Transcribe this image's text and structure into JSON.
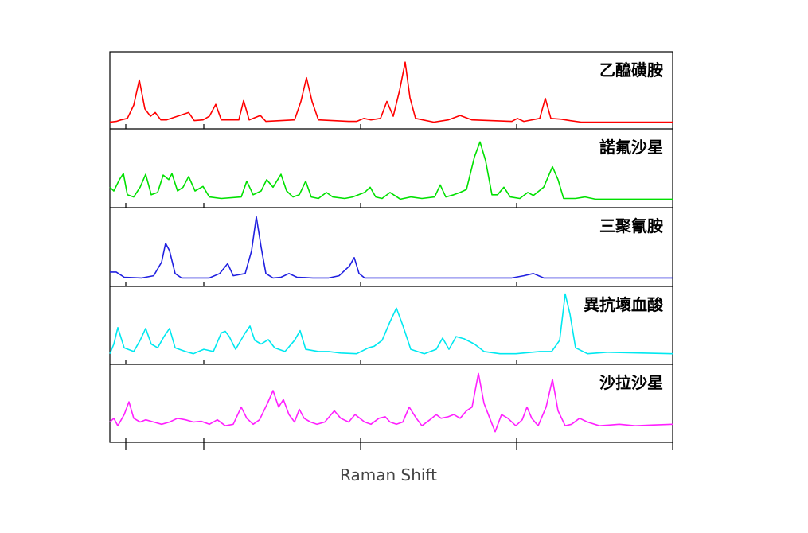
{
  "chart_data": [
    {
      "type": "line",
      "title": "乙醯磺胺",
      "color": "#ff0000",
      "xlim": [
        0,
        707
      ],
      "ylim": [
        0,
        100
      ],
      "x": [
        0,
        8,
        14,
        22,
        30,
        37,
        44,
        51,
        57,
        64,
        71,
        99,
        106,
        117,
        125,
        133,
        140,
        162,
        168,
        175,
        189,
        196,
        232,
        240,
        247,
        254,
        262,
        300,
        310,
        319,
        328,
        340,
        348,
        356,
        364,
        371,
        377,
        384,
        407,
        425,
        440,
        455,
        505,
        512,
        520,
        540,
        547,
        554,
        567,
        578,
        592,
        707
      ],
      "values": [
        7,
        8,
        10,
        12,
        30,
        64,
        25,
        15,
        20,
        10,
        10,
        20,
        9,
        10,
        15,
        31,
        10,
        10,
        36,
        10,
        16,
        8,
        10,
        35,
        67,
        35,
        10,
        8,
        8,
        12,
        10,
        12,
        35,
        15,
        50,
        88,
        40,
        12,
        7,
        10,
        16,
        10,
        8,
        12,
        8,
        12,
        39,
        12,
        11,
        9,
        7,
        7
      ]
    },
    {
      "type": "line",
      "title": "諾氟沙星",
      "color": "#00e000",
      "xlim": [
        0,
        707
      ],
      "ylim": [
        0,
        100
      ],
      "x": [
        0,
        5,
        12,
        17,
        22,
        30,
        38,
        45,
        52,
        60,
        67,
        74,
        78,
        85,
        92,
        99,
        107,
        117,
        125,
        140,
        165,
        172,
        180,
        190,
        197,
        205,
        215,
        222,
        230,
        238,
        246,
        253,
        262,
        272,
        280,
        295,
        305,
        320,
        327,
        334,
        342,
        352,
        365,
        378,
        392,
        408,
        415,
        422,
        432,
        440,
        448,
        458,
        465,
        472,
        480,
        487,
        495,
        503,
        515,
        525,
        532,
        545,
        556,
        563,
        570,
        585,
        597,
        610,
        707
      ],
      "values": [
        25,
        20,
        35,
        43,
        15,
        12,
        25,
        42,
        15,
        18,
        41,
        35,
        43,
        20,
        25,
        39,
        20,
        26,
        12,
        10,
        12,
        33,
        15,
        20,
        35,
        25,
        42,
        20,
        12,
        15,
        33,
        12,
        10,
        18,
        12,
        10,
        12,
        18,
        25,
        12,
        10,
        18,
        9,
        12,
        10,
        12,
        28,
        12,
        15,
        18,
        22,
        65,
        85,
        60,
        15,
        15,
        25,
        12,
        10,
        18,
        14,
        25,
        52,
        35,
        10,
        10,
        12,
        9,
        9
      ]
    },
    {
      "type": "line",
      "title": "三聚氰胺",
      "color": "#2020e0",
      "xlim": [
        0,
        707
      ],
      "ylim": [
        0,
        100
      ],
      "x": [
        0,
        8,
        18,
        40,
        55,
        65,
        70,
        75,
        82,
        90,
        125,
        138,
        148,
        155,
        170,
        178,
        184,
        190,
        196,
        205,
        215,
        225,
        235,
        255,
        275,
        288,
        301,
        307,
        313,
        320,
        330,
        420,
        505,
        520,
        532,
        545,
        707
      ],
      "values": [
        17,
        17,
        10,
        9,
        12,
        30,
        55,
        45,
        15,
        9,
        9,
        15,
        28,
        12,
        15,
        45,
        90,
        50,
        15,
        9,
        10,
        15,
        10,
        9,
        9,
        12,
        25,
        36,
        15,
        9,
        9,
        9,
        9,
        12,
        15,
        9,
        9
      ]
    },
    {
      "type": "line",
      "title": "異抗壞血酸",
      "color": "#00e8f0",
      "xlim": [
        0,
        707
      ],
      "ylim": [
        0,
        100
      ],
      "x": [
        0,
        5,
        10,
        18,
        30,
        38,
        45,
        52,
        60,
        68,
        75,
        82,
        95,
        105,
        118,
        130,
        140,
        145,
        150,
        158,
        170,
        176,
        182,
        190,
        199,
        207,
        220,
        232,
        239,
        246,
        262,
        275,
        290,
        310,
        325,
        332,
        342,
        352,
        360,
        368,
        378,
        395,
        410,
        418,
        426,
        435,
        445,
        458,
        470,
        490,
        510,
        540,
        555,
        565,
        572,
        578,
        585,
        600,
        625,
        707
      ],
      "values": [
        12,
        25,
        47,
        20,
        15,
        30,
        46,
        25,
        20,
        35,
        46,
        20,
        15,
        12,
        18,
        15,
        40,
        42,
        35,
        18,
        40,
        49,
        30,
        25,
        31,
        20,
        15,
        30,
        43,
        18,
        15,
        15,
        13,
        12,
        20,
        22,
        30,
        55,
        73,
        50,
        18,
        12,
        18,
        33,
        18,
        35,
        32,
        25,
        15,
        12,
        12,
        15,
        15,
        30,
        92,
        65,
        20,
        12,
        14,
        12
      ]
    },
    {
      "type": "line",
      "title": "沙拉沙星",
      "color": "#ff20ff",
      "xlim": [
        0,
        707
      ],
      "ylim": [
        0,
        100
      ],
      "xlabel": "Raman Shift",
      "x": [
        0,
        5,
        10,
        18,
        24,
        30,
        38,
        45,
        55,
        65,
        75,
        85,
        95,
        105,
        115,
        125,
        135,
        145,
        155,
        165,
        172,
        180,
        188,
        198,
        205,
        212,
        218,
        225,
        232,
        238,
        244,
        252,
        260,
        270,
        282,
        290,
        300,
        308,
        314,
        320,
        328,
        338,
        346,
        352,
        360,
        368,
        376,
        385,
        392,
        402,
        410,
        416,
        425,
        432,
        440,
        448,
        455,
        463,
        470,
        478,
        484,
        492,
        500,
        510,
        518,
        524,
        530,
        538,
        548,
        556,
        563,
        572,
        580,
        590,
        600,
        615,
        640,
        660,
        680,
        707
      ],
      "values": [
        25,
        30,
        20,
        35,
        52,
        30,
        25,
        28,
        25,
        22,
        25,
        30,
        28,
        25,
        26,
        22,
        28,
        20,
        22,
        45,
        30,
        22,
        28,
        50,
        67,
        45,
        55,
        35,
        25,
        42,
        30,
        25,
        22,
        25,
        40,
        30,
        25,
        35,
        30,
        25,
        22,
        30,
        32,
        25,
        22,
        25,
        45,
        30,
        20,
        28,
        35,
        30,
        32,
        35,
        30,
        40,
        45,
        90,
        50,
        28,
        12,
        35,
        30,
        20,
        28,
        45,
        30,
        20,
        45,
        82,
        40,
        20,
        22,
        30,
        25,
        20,
        22,
        20,
        21,
        22
      ]
    }
  ]
}
